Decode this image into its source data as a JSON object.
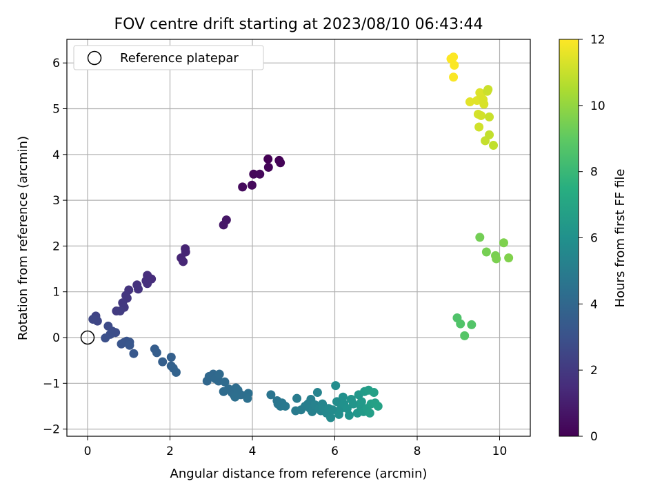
{
  "chart_data": {
    "type": "scatter",
    "title": "FOV centre drift starting at 2023/08/10 06:43:44",
    "xlabel": "Angular distance from reference (arcmin)",
    "ylabel": "Rotation from reference (arcmin)",
    "xlim": [
      -0.5,
      10.75
    ],
    "ylim": [
      -2.2,
      6.55
    ],
    "xticks": [
      0,
      2,
      4,
      6,
      8,
      10
    ],
    "yticks": [
      -2,
      -1,
      0,
      1,
      2,
      3,
      4,
      5,
      6
    ],
    "grid": true,
    "legend": {
      "position": "top-left",
      "entries": [
        "Reference platepar"
      ]
    },
    "reference_point": {
      "x": 0,
      "y": 0,
      "label": "Reference platepar"
    },
    "colorbar": {
      "label": "Hours from first FF file",
      "colormap": "viridis",
      "range": [
        0,
        12
      ],
      "ticks": [
        0,
        2,
        4,
        6,
        8,
        10,
        12
      ]
    },
    "points": [
      {
        "x": 4.38,
        "y": 3.9,
        "c": 0.0
      },
      {
        "x": 4.65,
        "y": 3.87,
        "c": 0.05
      },
      {
        "x": 4.68,
        "y": 3.82,
        "c": 0.1
      },
      {
        "x": 4.39,
        "y": 3.72,
        "c": 0.15
      },
      {
        "x": 4.03,
        "y": 3.57,
        "c": 0.2
      },
      {
        "x": 4.18,
        "y": 3.57,
        "c": 0.25
      },
      {
        "x": 3.99,
        "y": 3.33,
        "c": 0.3
      },
      {
        "x": 3.76,
        "y": 3.29,
        "c": 0.35
      },
      {
        "x": 3.37,
        "y": 2.57,
        "c": 0.7
      },
      {
        "x": 3.3,
        "y": 2.46,
        "c": 0.75
      },
      {
        "x": 2.37,
        "y": 1.94,
        "c": 1.2
      },
      {
        "x": 2.38,
        "y": 1.87,
        "c": 1.22
      },
      {
        "x": 2.27,
        "y": 1.74,
        "c": 1.25
      },
      {
        "x": 2.32,
        "y": 1.66,
        "c": 1.3
      },
      {
        "x": 1.55,
        "y": 1.28,
        "c": 1.5
      },
      {
        "x": 1.45,
        "y": 1.36,
        "c": 1.55
      },
      {
        "x": 1.42,
        "y": 1.24,
        "c": 1.6
      },
      {
        "x": 1.45,
        "y": 1.18,
        "c": 1.62
      },
      {
        "x": 1.2,
        "y": 1.15,
        "c": 1.7
      },
      {
        "x": 1.23,
        "y": 1.06,
        "c": 1.75
      },
      {
        "x": 1.0,
        "y": 1.04,
        "c": 1.8
      },
      {
        "x": 0.93,
        "y": 0.92,
        "c": 1.85
      },
      {
        "x": 0.96,
        "y": 0.86,
        "c": 1.9
      },
      {
        "x": 0.85,
        "y": 0.76,
        "c": 1.95
      },
      {
        "x": 0.89,
        "y": 0.66,
        "c": 2.0
      },
      {
        "x": 0.7,
        "y": 0.58,
        "c": 2.05
      },
      {
        "x": 0.79,
        "y": 0.58,
        "c": 2.1
      },
      {
        "x": 0.2,
        "y": 0.47,
        "c": 2.4
      },
      {
        "x": 0.18,
        "y": 0.4,
        "c": 2.45
      },
      {
        "x": 0.24,
        "y": 0.36,
        "c": 2.5
      },
      {
        "x": 0.13,
        "y": 0.4,
        "c": 2.55
      },
      {
        "x": 0.5,
        "y": 0.25,
        "c": 2.7
      },
      {
        "x": 0.6,
        "y": 0.14,
        "c": 2.75
      },
      {
        "x": 0.68,
        "y": 0.11,
        "c": 2.8
      },
      {
        "x": 0.55,
        "y": 0.07,
        "c": 2.85
      },
      {
        "x": 0.43,
        "y": -0.01,
        "c": 2.9
      },
      {
        "x": 0.88,
        "y": -0.11,
        "c": 3.05
      },
      {
        "x": 0.95,
        "y": -0.08,
        "c": 3.1
      },
      {
        "x": 0.82,
        "y": -0.14,
        "c": 3.15
      },
      {
        "x": 1.02,
        "y": -0.1,
        "c": 3.2
      },
      {
        "x": 1.02,
        "y": -0.17,
        "c": 3.25
      },
      {
        "x": 1.12,
        "y": -0.35,
        "c": 3.3
      },
      {
        "x": 1.63,
        "y": -0.25,
        "c": 3.5
      },
      {
        "x": 1.68,
        "y": -0.33,
        "c": 3.55
      },
      {
        "x": 1.82,
        "y": -0.53,
        "c": 3.6
      },
      {
        "x": 2.03,
        "y": -0.43,
        "c": 3.65
      },
      {
        "x": 2.03,
        "y": -0.62,
        "c": 3.7
      },
      {
        "x": 2.08,
        "y": -0.67,
        "c": 3.75
      },
      {
        "x": 2.15,
        "y": -0.76,
        "c": 3.8
      },
      {
        "x": 2.9,
        "y": -0.95,
        "c": 4.0
      },
      {
        "x": 2.95,
        "y": -0.85,
        "c": 4.02
      },
      {
        "x": 3.05,
        "y": -0.8,
        "c": 4.05
      },
      {
        "x": 3.1,
        "y": -0.9,
        "c": 4.08
      },
      {
        "x": 3.18,
        "y": -0.95,
        "c": 4.1
      },
      {
        "x": 3.2,
        "y": -0.8,
        "c": 4.12
      },
      {
        "x": 3.33,
        "y": -0.97,
        "c": 4.15
      },
      {
        "x": 3.3,
        "y": -1.18,
        "c": 4.18
      },
      {
        "x": 3.42,
        "y": -1.12,
        "c": 4.2
      },
      {
        "x": 3.5,
        "y": -1.2,
        "c": 4.22
      },
      {
        "x": 3.55,
        "y": -1.25,
        "c": 4.25
      },
      {
        "x": 3.6,
        "y": -1.1,
        "c": 4.28
      },
      {
        "x": 3.65,
        "y": -1.15,
        "c": 4.3
      },
      {
        "x": 3.72,
        "y": -1.25,
        "c": 4.32
      },
      {
        "x": 3.58,
        "y": -1.3,
        "c": 4.35
      },
      {
        "x": 3.9,
        "y": -1.22,
        "c": 4.38
      },
      {
        "x": 3.88,
        "y": -1.33,
        "c": 4.4
      },
      {
        "x": 4.45,
        "y": -1.25,
        "c": 4.6
      },
      {
        "x": 4.6,
        "y": -1.38,
        "c": 4.65
      },
      {
        "x": 4.62,
        "y": -1.45,
        "c": 4.7
      },
      {
        "x": 4.68,
        "y": -1.5,
        "c": 4.72
      },
      {
        "x": 4.72,
        "y": -1.43,
        "c": 4.75
      },
      {
        "x": 4.8,
        "y": -1.5,
        "c": 4.8
      },
      {
        "x": 5.05,
        "y": -1.6,
        "c": 4.9
      },
      {
        "x": 5.08,
        "y": -1.33,
        "c": 4.95
      },
      {
        "x": 5.18,
        "y": -1.58,
        "c": 5.0
      },
      {
        "x": 5.28,
        "y": -1.5,
        "c": 5.05
      },
      {
        "x": 5.35,
        "y": -1.45,
        "c": 5.1
      },
      {
        "x": 5.4,
        "y": -1.55,
        "c": 5.12
      },
      {
        "x": 5.42,
        "y": -1.35,
        "c": 5.15
      },
      {
        "x": 5.45,
        "y": -1.62,
        "c": 5.2
      },
      {
        "x": 5.48,
        "y": -1.55,
        "c": 5.22
      },
      {
        "x": 5.52,
        "y": -1.47,
        "c": 5.25
      },
      {
        "x": 5.58,
        "y": -1.2,
        "c": 5.3
      },
      {
        "x": 5.62,
        "y": -1.55,
        "c": 5.35
      },
      {
        "x": 5.66,
        "y": -1.6,
        "c": 5.38
      },
      {
        "x": 5.7,
        "y": -1.45,
        "c": 5.4
      },
      {
        "x": 5.72,
        "y": -1.53,
        "c": 5.45
      },
      {
        "x": 5.78,
        "y": -1.58,
        "c": 5.5
      },
      {
        "x": 5.8,
        "y": -1.65,
        "c": 5.55
      },
      {
        "x": 5.85,
        "y": -1.55,
        "c": 5.6
      },
      {
        "x": 5.9,
        "y": -1.75,
        "c": 5.65
      },
      {
        "x": 5.95,
        "y": -1.58,
        "c": 5.7
      },
      {
        "x": 6.02,
        "y": -1.05,
        "c": 5.75
      },
      {
        "x": 6.05,
        "y": -1.4,
        "c": 5.8
      },
      {
        "x": 6.1,
        "y": -1.68,
        "c": 5.85
      },
      {
        "x": 6.15,
        "y": -1.55,
        "c": 5.9
      },
      {
        "x": 6.2,
        "y": -1.3,
        "c": 5.95
      },
      {
        "x": 6.22,
        "y": -1.45,
        "c": 6.0
      },
      {
        "x": 6.3,
        "y": -1.55,
        "c": 6.05
      },
      {
        "x": 6.35,
        "y": -1.7,
        "c": 6.1
      },
      {
        "x": 6.4,
        "y": -1.35,
        "c": 6.15
      },
      {
        "x": 6.45,
        "y": -1.45,
        "c": 6.2
      },
      {
        "x": 6.55,
        "y": -1.65,
        "c": 6.25
      },
      {
        "x": 6.58,
        "y": -1.25,
        "c": 6.3
      },
      {
        "x": 6.63,
        "y": -1.5,
        "c": 6.35
      },
      {
        "x": 6.65,
        "y": -1.4,
        "c": 6.4
      },
      {
        "x": 6.7,
        "y": -1.62,
        "c": 6.45
      },
      {
        "x": 6.72,
        "y": -1.18,
        "c": 6.5
      },
      {
        "x": 6.78,
        "y": -1.55,
        "c": 6.55
      },
      {
        "x": 6.82,
        "y": -1.15,
        "c": 6.6
      },
      {
        "x": 6.85,
        "y": -1.65,
        "c": 6.65
      },
      {
        "x": 6.88,
        "y": -1.45,
        "c": 6.7
      },
      {
        "x": 6.95,
        "y": -1.2,
        "c": 6.75
      },
      {
        "x": 6.98,
        "y": -1.43,
        "c": 6.8
      },
      {
        "x": 7.05,
        "y": -1.5,
        "c": 6.85
      },
      {
        "x": 8.97,
        "y": 0.43,
        "c": 8.6
      },
      {
        "x": 9.05,
        "y": 0.3,
        "c": 8.65
      },
      {
        "x": 9.32,
        "y": 0.28,
        "c": 8.7
      },
      {
        "x": 9.15,
        "y": 0.04,
        "c": 8.75
      },
      {
        "x": 9.52,
        "y": 2.19,
        "c": 9.4
      },
      {
        "x": 9.68,
        "y": 1.87,
        "c": 9.45
      },
      {
        "x": 9.9,
        "y": 1.79,
        "c": 9.5
      },
      {
        "x": 9.92,
        "y": 1.72,
        "c": 9.55
      },
      {
        "x": 10.1,
        "y": 2.07,
        "c": 9.6
      },
      {
        "x": 10.22,
        "y": 1.74,
        "c": 9.65
      },
      {
        "x": 8.82,
        "y": 6.09,
        "c": 12.0
      },
      {
        "x": 8.88,
        "y": 6.13,
        "c": 11.98
      },
      {
        "x": 8.9,
        "y": 5.95,
        "c": 11.95
      },
      {
        "x": 8.88,
        "y": 5.69,
        "c": 11.92
      },
      {
        "x": 9.28,
        "y": 5.15,
        "c": 11.5
      },
      {
        "x": 9.45,
        "y": 5.18,
        "c": 11.45
      },
      {
        "x": 9.52,
        "y": 5.35,
        "c": 11.4
      },
      {
        "x": 9.55,
        "y": 5.28,
        "c": 11.38
      },
      {
        "x": 9.6,
        "y": 5.2,
        "c": 11.35
      },
      {
        "x": 9.62,
        "y": 5.1,
        "c": 11.3
      },
      {
        "x": 9.48,
        "y": 4.88,
        "c": 11.25
      },
      {
        "x": 9.55,
        "y": 4.85,
        "c": 11.2
      },
      {
        "x": 9.5,
        "y": 4.6,
        "c": 11.15
      },
      {
        "x": 9.7,
        "y": 5.38,
        "c": 11.1
      },
      {
        "x": 9.72,
        "y": 5.42,
        "c": 11.05
      },
      {
        "x": 9.75,
        "y": 4.82,
        "c": 11.0
      },
      {
        "x": 9.65,
        "y": 4.3,
        "c": 10.95
      },
      {
        "x": 9.75,
        "y": 4.43,
        "c": 10.9
      },
      {
        "x": 9.85,
        "y": 4.2,
        "c": 10.85
      }
    ]
  }
}
